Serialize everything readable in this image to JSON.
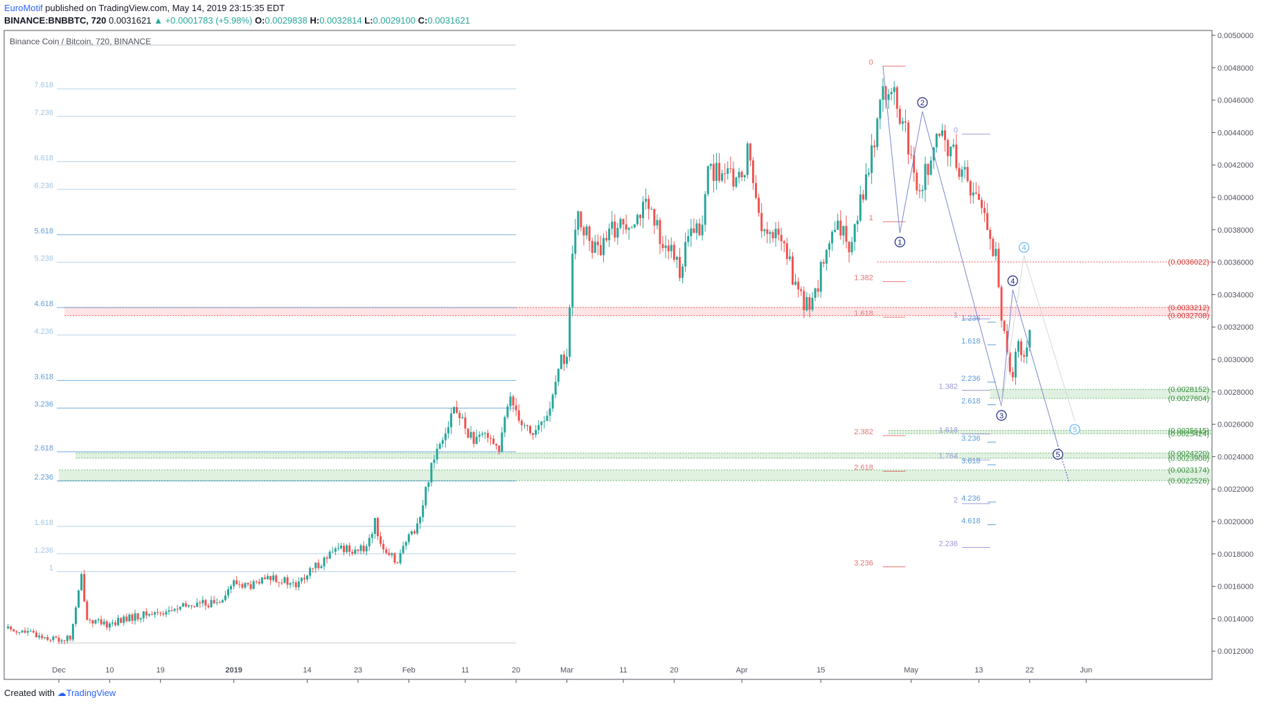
{
  "header": {
    "user": "EuroMotif",
    "published": "published on TradingView.com, May 14, 2019 23:15:35 EDT",
    "symbol": "BINANCE:BNBBTC, 720",
    "last": "0.0031621",
    "change": "▲ +0.0001783 (+5.98%)",
    "o_label": "O:",
    "o_value": "0.0029838",
    "h_label": "H:",
    "h_value": "0.0032814",
    "l_label": "L:",
    "l_value": "0.0029100",
    "c_label": "C:",
    "c_value": "0.0031621"
  },
  "footer": {
    "created": "Created with",
    "brand": "TradingView"
  },
  "colors": {
    "up": "#26a69a",
    "down": "#ef5350",
    "fib_blue": "#5b9bd5",
    "fib_red": "#e57373",
    "fib_purple": "#9c98d8",
    "zone_green": "#c8e6c9",
    "zone_red": "#ffcdd2",
    "wave_dark": "#1a237e",
    "wave_light": "#64b5f6",
    "price_red": "#d32f2f",
    "price_green": "#388e3c"
  },
  "chart_data": {
    "type": "candlestick",
    "title": "Binance Coin / Bitcoin, 720, BINANCE",
    "ylim": [
      0.001,
      0.005
    ],
    "y_ticks": [
      "0.0050000",
      "0.0048000",
      "0.0046000",
      "0.0044000",
      "0.0042000",
      "0.0040000",
      "0.0038000",
      "0.0036000",
      "0.0034000",
      "0.0032000",
      "0.0030000",
      "0.0028000",
      "0.0026000",
      "0.0024000",
      "0.0022000",
      "0.0020000",
      "0.0018000",
      "0.0016000",
      "0.0014000",
      "0.0012000"
    ],
    "x_ticks": [
      {
        "label": "Dec",
        "day": 0
      },
      {
        "label": "10",
        "day": 9
      },
      {
        "label": "19",
        "day": 18
      },
      {
        "label": "2019",
        "day": 31
      },
      {
        "label": "14",
        "day": 44
      },
      {
        "label": "23",
        "day": 53
      },
      {
        "label": "Feb",
        "day": 62
      },
      {
        "label": "11",
        "day": 72
      },
      {
        "label": "20",
        "day": 81
      },
      {
        "label": "Mar",
        "day": 90
      },
      {
        "label": "11",
        "day": 100
      },
      {
        "label": "20",
        "day": 109
      },
      {
        "label": "Apr",
        "day": 121
      },
      {
        "label": "15",
        "day": 135
      },
      {
        "label": "May",
        "day": 151
      },
      {
        "label": "13",
        "day": 163
      },
      {
        "label": "22",
        "day": 172
      },
      {
        "label": "Jun",
        "day": 182
      }
    ],
    "price_path": [
      [
        -9,
        0.00134
      ],
      [
        -4,
        0.0013
      ],
      [
        0,
        0.00127
      ],
      [
        2,
        0.00128
      ],
      [
        3,
        0.00146
      ],
      [
        4,
        0.00166
      ],
      [
        5,
        0.0014
      ],
      [
        8,
        0.00136
      ],
      [
        12,
        0.0014
      ],
      [
        16,
        0.00143
      ],
      [
        20,
        0.00145
      ],
      [
        24,
        0.00149
      ],
      [
        28,
        0.0015
      ],
      [
        31,
        0.00162
      ],
      [
        34,
        0.0016
      ],
      [
        38,
        0.00166
      ],
      [
        42,
        0.0016
      ],
      [
        46,
        0.00174
      ],
      [
        50,
        0.00184
      ],
      [
        54,
        0.00182
      ],
      [
        56,
        0.00199
      ],
      [
        58,
        0.00178
      ],
      [
        60,
        0.00177
      ],
      [
        64,
        0.00202
      ],
      [
        66,
        0.00236
      ],
      [
        68,
        0.00254
      ],
      [
        70,
        0.0027
      ],
      [
        72,
        0.00258
      ],
      [
        74,
        0.00248
      ],
      [
        76,
        0.00256
      ],
      [
        78,
        0.00244
      ],
      [
        80,
        0.00278
      ],
      [
        82,
        0.00262
      ],
      [
        84,
        0.00254
      ],
      [
        86,
        0.00262
      ],
      [
        88,
        0.00282
      ],
      [
        89,
        0.003
      ],
      [
        90,
        0.00302
      ],
      [
        91,
        0.0036
      ],
      [
        92,
        0.0039
      ],
      [
        94,
        0.00372
      ],
      [
        96,
        0.00366
      ],
      [
        98,
        0.0038
      ],
      [
        100,
        0.00384
      ],
      [
        104,
        0.00394
      ],
      [
        106,
        0.0038
      ],
      [
        108,
        0.00368
      ],
      [
        110,
        0.00356
      ],
      [
        112,
        0.00378
      ],
      [
        114,
        0.0038
      ],
      [
        115,
        0.0042
      ],
      [
        118,
        0.00412
      ],
      [
        121,
        0.0041
      ],
      [
        122,
        0.0043
      ],
      [
        123,
        0.0041
      ],
      [
        125,
        0.00376
      ],
      [
        128,
        0.00376
      ],
      [
        130,
        0.00352
      ],
      [
        132,
        0.00332
      ],
      [
        134,
        0.0034
      ],
      [
        136,
        0.00368
      ],
      [
        138,
        0.0038
      ],
      [
        140,
        0.00372
      ],
      [
        142,
        0.00398
      ],
      [
        144,
        0.00426
      ],
      [
        146,
        0.0047
      ],
      [
        148,
        0.0046
      ],
      [
        150,
        0.0044
      ],
      [
        152,
        0.004
      ],
      [
        154,
        0.0042
      ],
      [
        156,
        0.00436
      ],
      [
        158,
        0.0043
      ],
      [
        160,
        0.00416
      ],
      [
        162,
        0.00404
      ],
      [
        164,
        0.0039
      ],
      [
        166,
        0.00362
      ],
      [
        167,
        0.00328
      ],
      [
        168,
        0.003
      ],
      [
        169,
        0.00294
      ],
      [
        170,
        0.0031
      ],
      [
        171,
        0.003
      ],
      [
        172,
        0.00316
      ]
    ],
    "fib_left": {
      "levels": [
        {
          "label": "1",
          "price": 0.00169
        },
        {
          "label": "1.236",
          "price": 0.0018
        },
        {
          "label": "1.618",
          "price": 0.00197
        },
        {
          "label": "2.236",
          "price": 0.00225
        },
        {
          "label": "2.618",
          "price": 0.00243
        },
        {
          "label": "3.236",
          "price": 0.0027
        },
        {
          "label": "3.618",
          "price": 0.00287
        },
        {
          "label": "4.236",
          "price": 0.00315
        },
        {
          "label": "4.618",
          "price": 0.00332
        },
        {
          "label": "5.236",
          "price": 0.0036
        },
        {
          "label": "5.618",
          "price": 0.00377
        },
        {
          "label": "6.236",
          "price": 0.00405
        },
        {
          "label": "6.618",
          "price": 0.00422
        },
        {
          "label": "7.236",
          "price": 0.0045
        },
        {
          "label": "7.618",
          "price": 0.00467
        }
      ],
      "base_price": 0.00125,
      "top_price": 0.00494
    },
    "fib_red": [
      {
        "label": "0",
        "price": 0.00481
      },
      {
        "label": "1",
        "price": 0.00385
      },
      {
        "label": "1.382",
        "price": 0.00348
      },
      {
        "label": "1.618",
        "price": 0.00326
      },
      {
        "label": "2.382",
        "price": 0.00253
      },
      {
        "label": "2.618",
        "price": 0.00231
      },
      {
        "label": "3.236",
        "price": 0.00172
      }
    ],
    "fib_purple": [
      {
        "label": "0",
        "price": 0.00439
      },
      {
        "label": "1",
        "price": 0.00325
      },
      {
        "label": "1.382",
        "price": 0.00281
      },
      {
        "label": "1.618",
        "price": 0.00254
      },
      {
        "label": "1.764",
        "price": 0.00238
      },
      {
        "label": "2",
        "price": 0.00211
      },
      {
        "label": "2.236",
        "price": 0.00184
      }
    ],
    "fib_blue_right": [
      {
        "label": "1.236",
        "price": 0.00323
      },
      {
        "label": "1.618",
        "price": 0.00309
      },
      {
        "label": "2.236",
        "price": 0.00286
      },
      {
        "label": "2.618",
        "price": 0.00272
      },
      {
        "label": "3.236",
        "price": 0.00249
      },
      {
        "label": "3.618",
        "price": 0.00235
      },
      {
        "label": "4.236",
        "price": 0.00212
      },
      {
        "label": "4.618",
        "price": 0.00198
      }
    ],
    "price_labels": [
      {
        "text": "(0.0036022)",
        "price": 0.0036022,
        "color": "red"
      },
      {
        "text": "(0.0033212)",
        "price": 0.0033212,
        "color": "red"
      },
      {
        "text": "(0.0032708)",
        "price": 0.0032708,
        "color": "red"
      },
      {
        "text": "(0.0028152)",
        "price": 0.0028152,
        "color": "green"
      },
      {
        "text": "(0.0027604)",
        "price": 0.0027604,
        "color": "green"
      },
      {
        "text": "(0.0025615)",
        "price": 0.0025615,
        "color": "green"
      },
      {
        "text": "(0.0025424)",
        "price": 0.0025424,
        "color": "green"
      },
      {
        "text": "(0.0024220)",
        "price": 0.002422,
        "color": "green"
      },
      {
        "text": "(0.0023908)",
        "price": 0.0023908,
        "color": "green"
      },
      {
        "text": "(0.0023174)",
        "price": 0.0023174,
        "color": "green"
      },
      {
        "text": "(0.0022526)",
        "price": 0.0022526,
        "color": "green"
      }
    ],
    "zones": [
      {
        "from": 0.0032708,
        "to": 0.0033212,
        "color": "red",
        "start_day": 1
      },
      {
        "from": 0.0027604,
        "to": 0.0028152,
        "color": "green",
        "start_day": 165
      },
      {
        "from": 0.0025424,
        "to": 0.0025615,
        "color": "green",
        "start_day": 147
      },
      {
        "from": 0.0023908,
        "to": 0.002422,
        "color": "green",
        "start_day": 3
      },
      {
        "from": 0.0022526,
        "to": 0.0023174,
        "color": "green",
        "start_day": 0
      }
    ],
    "waves_dark": [
      {
        "label": "1",
        "day": 149,
        "price": 0.00378
      },
      {
        "label": "2",
        "day": 153,
        "price": 0.00453
      },
      {
        "label": "3",
        "day": 167,
        "price": 0.00271
      },
      {
        "label": "4",
        "day": 169,
        "price": 0.00343
      },
      {
        "label": "5",
        "day": 177,
        "price": 0.00247
      }
    ],
    "waves_light": [
      {
        "label": "4",
        "day": 171,
        "price": 0.00364
      },
      {
        "label": "5",
        "day": 180,
        "price": 0.00262
      }
    ]
  }
}
